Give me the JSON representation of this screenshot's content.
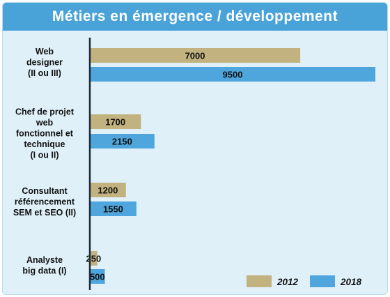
{
  "chart_data": {
    "type": "bar",
    "orientation": "horizontal",
    "title": "Métiers en émergence / développement",
    "categories": [
      [
        "Web",
        "designer",
        "(II ou III)"
      ],
      [
        "Chef de projet",
        "web",
        "fonctionnel et",
        "technique",
        "(I ou II)"
      ],
      [
        "Consultant",
        "référencement",
        "SEM et SEO (II)"
      ],
      [
        "Analyste",
        "big data (I)"
      ]
    ],
    "series": [
      {
        "name": "2012",
        "values": [
          7000,
          1700,
          1200,
          250
        ]
      },
      {
        "name": "2018",
        "values": [
          9500,
          2150,
          1550,
          500
        ]
      }
    ],
    "colors": {
      "2012": "#c2b280",
      "2018": "#4ea6dc"
    },
    "xlim": [
      0,
      9500
    ],
    "grid": false,
    "legend_position": "bottom-right"
  }
}
